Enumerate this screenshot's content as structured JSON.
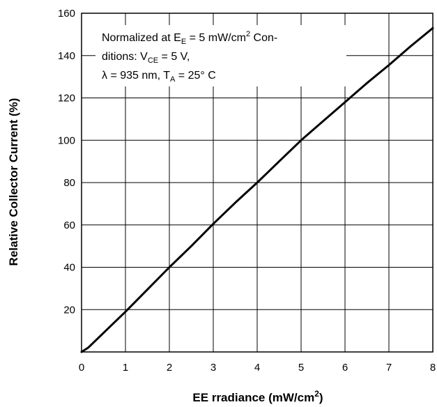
{
  "chart_data": {
    "type": "line",
    "title": "",
    "xlabel": {
      "text": "EE rradiance (mW/cm",
      "superscript": "2",
      "close": ")"
    },
    "ylabel": "Relative Collector Current (%)",
    "xlim": [
      0,
      8
    ],
    "ylim": [
      0,
      160
    ],
    "x_ticks": [
      0,
      1,
      2,
      3,
      4,
      5,
      6,
      7,
      8
    ],
    "y_ticks": [
      20,
      40,
      60,
      80,
      100,
      120,
      140,
      160
    ],
    "grid": true,
    "annotation": {
      "line1": {
        "a": "Normalized at E",
        "sub": "E",
        "b": " = 5 mW/cm",
        "sup": "2",
        "c": " Con-"
      },
      "line2": {
        "a": "ditions: V",
        "sub": "CE",
        "b": " = 5 V,"
      },
      "line3": {
        "a": "λ = 935 nm, T",
        "sub": "A",
        "b": " = 25° C"
      }
    },
    "series": [
      {
        "x": [
          0,
          0.15,
          0.5,
          1,
          1.5,
          2,
          2.5,
          3,
          3.5,
          4,
          4.5,
          5,
          5.5,
          6,
          6.5,
          7,
          7.5,
          8
        ],
        "values": [
          0,
          2,
          9,
          19,
          29.5,
          40,
          50,
          60.5,
          70.5,
          80,
          90,
          100,
          109,
          118,
          127,
          135.5,
          144.5,
          153
        ],
        "color": "#000000"
      }
    ]
  }
}
